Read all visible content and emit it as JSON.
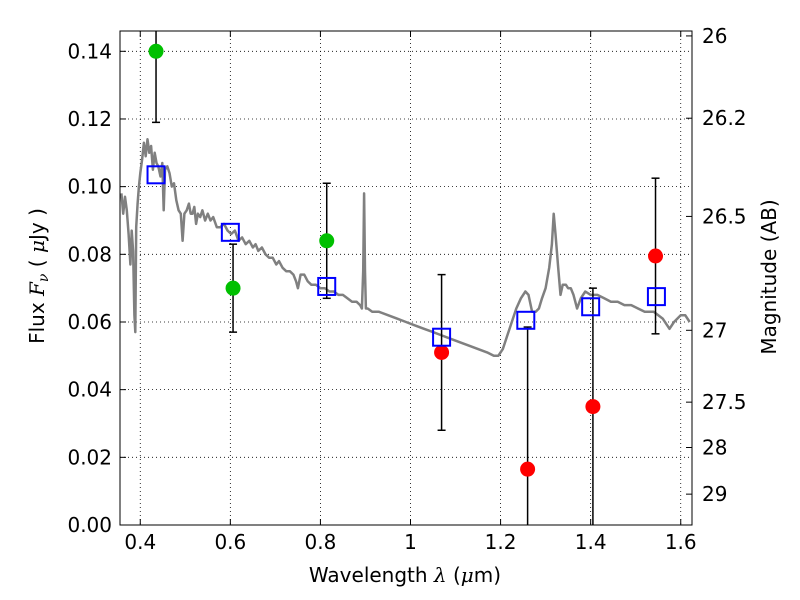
{
  "chart_data": {
    "type": "scatter",
    "xlabel": {
      "prefix": "Wavelength  ",
      "symbol": "λ",
      "units_open": " (",
      "units_sym": "μ",
      "units_rest": "m)"
    },
    "ylabel": {
      "prefix": "Flux  ",
      "symbol": "F",
      "sub": "ν",
      "units_open": "  ( ",
      "units_sym": "μ",
      "units_rest": "Jy )"
    },
    "y2label": "Magnitude (AB)",
    "xlim": [
      0.355,
      1.625
    ],
    "ylim": [
      0.0,
      0.146
    ],
    "grid": true,
    "x_ticks": [
      {
        "v": 0.4,
        "label": "0.4"
      },
      {
        "v": 0.6,
        "label": "0.6"
      },
      {
        "v": 0.8,
        "label": "0.8"
      },
      {
        "v": 1.0,
        "label": "1"
      },
      {
        "v": 1.2,
        "label": "1.2"
      },
      {
        "v": 1.4,
        "label": "1.4"
      },
      {
        "v": 1.6,
        "label": "1.6"
      }
    ],
    "y_ticks": [
      {
        "v": 0.0,
        "label": "0.00"
      },
      {
        "v": 0.02,
        "label": "0.02"
      },
      {
        "v": 0.04,
        "label": "0.04"
      },
      {
        "v": 0.06,
        "label": "0.06"
      },
      {
        "v": 0.08,
        "label": "0.08"
      },
      {
        "v": 0.1,
        "label": "0.10"
      },
      {
        "v": 0.12,
        "label": "0.12"
      },
      {
        "v": 0.14,
        "label": "0.14"
      }
    ],
    "y2_ticks": [
      {
        "mag": 26,
        "label": "26"
      },
      {
        "mag": 26.2,
        "label": "26.2"
      },
      {
        "mag": 26.5,
        "label": "26.5"
      },
      {
        "mag": 27,
        "label": "27"
      },
      {
        "mag": 27.5,
        "label": "27.5"
      },
      {
        "mag": 28,
        "label": "28"
      },
      {
        "mag": 29,
        "label": "29"
      }
    ],
    "model_sed": {
      "color": "#808080",
      "points": [
        [
          0.358,
          0.098
        ],
        [
          0.362,
          0.092
        ],
        [
          0.366,
          0.097
        ],
        [
          0.37,
          0.093
        ],
        [
          0.374,
          0.086
        ],
        [
          0.378,
          0.077
        ],
        [
          0.381,
          0.087
        ],
        [
          0.384,
          0.081
        ],
        [
          0.387,
          0.062
        ],
        [
          0.389,
          0.057
        ],
        [
          0.391,
          0.088
        ],
        [
          0.394,
          0.095
        ],
        [
          0.397,
          0.1
        ],
        [
          0.4,
          0.104
        ],
        [
          0.404,
          0.108
        ],
        [
          0.408,
          0.113
        ],
        [
          0.412,
          0.109
        ],
        [
          0.416,
          0.114
        ],
        [
          0.42,
          0.11
        ],
        [
          0.424,
          0.112
        ],
        [
          0.428,
          0.105
        ],
        [
          0.432,
          0.11
        ],
        [
          0.436,
          0.107
        ],
        [
          0.44,
          0.106
        ],
        [
          0.445,
          0.103
        ],
        [
          0.449,
          0.107
        ],
        [
          0.452,
          0.093
        ],
        [
          0.455,
          0.105
        ],
        [
          0.46,
          0.106
        ],
        [
          0.465,
          0.104
        ],
        [
          0.47,
          0.1
        ],
        [
          0.475,
          0.101
        ],
        [
          0.48,
          0.096
        ],
        [
          0.485,
          0.093
        ],
        [
          0.49,
          0.092
        ],
        [
          0.494,
          0.084
        ],
        [
          0.498,
          0.092
        ],
        [
          0.503,
          0.093
        ],
        [
          0.508,
          0.095
        ],
        [
          0.512,
          0.092
        ],
        [
          0.516,
          0.092
        ],
        [
          0.52,
          0.094
        ],
        [
          0.524,
          0.089
        ],
        [
          0.528,
          0.092
        ],
        [
          0.533,
          0.091
        ],
        [
          0.538,
          0.093
        ],
        [
          0.544,
          0.09
        ],
        [
          0.55,
          0.092
        ],
        [
          0.556,
          0.09
        ],
        [
          0.562,
          0.091
        ],
        [
          0.57,
          0.088
        ],
        [
          0.578,
          0.088
        ],
        [
          0.586,
          0.089
        ],
        [
          0.594,
          0.087
        ],
        [
          0.602,
          0.086
        ],
        [
          0.61,
          0.087
        ],
        [
          0.618,
          0.084
        ],
        [
          0.626,
          0.085
        ],
        [
          0.634,
          0.083
        ],
        [
          0.642,
          0.084
        ],
        [
          0.65,
          0.082
        ],
        [
          0.656,
          0.083
        ],
        [
          0.662,
          0.081
        ],
        [
          0.67,
          0.082
        ],
        [
          0.678,
          0.08
        ],
        [
          0.686,
          0.079
        ],
        [
          0.694,
          0.079
        ],
        [
          0.702,
          0.077
        ],
        [
          0.708,
          0.078
        ],
        [
          0.716,
          0.076
        ],
        [
          0.724,
          0.075
        ],
        [
          0.732,
          0.075
        ],
        [
          0.74,
          0.074
        ],
        [
          0.746,
          0.072
        ],
        [
          0.75,
          0.07
        ],
        [
          0.756,
          0.074
        ],
        [
          0.764,
          0.074
        ],
        [
          0.772,
          0.072
        ],
        [
          0.78,
          0.071
        ],
        [
          0.79,
          0.071
        ],
        [
          0.8,
          0.07
        ],
        [
          0.81,
          0.07
        ],
        [
          0.82,
          0.069
        ],
        [
          0.83,
          0.069
        ],
        [
          0.84,
          0.068
        ],
        [
          0.85,
          0.068
        ],
        [
          0.86,
          0.067
        ],
        [
          0.87,
          0.066
        ],
        [
          0.88,
          0.066
        ],
        [
          0.888,
          0.065
        ],
        [
          0.892,
          0.064
        ],
        [
          0.895,
          0.075
        ],
        [
          0.897,
          0.098
        ],
        [
          0.899,
          0.075
        ],
        [
          0.901,
          0.064
        ],
        [
          0.905,
          0.064
        ],
        [
          0.915,
          0.063
        ],
        [
          0.93,
          0.063
        ],
        [
          0.95,
          0.062
        ],
        [
          0.97,
          0.061
        ],
        [
          0.99,
          0.06
        ],
        [
          1.01,
          0.059
        ],
        [
          1.03,
          0.058
        ],
        [
          1.05,
          0.057
        ],
        [
          1.07,
          0.056
        ],
        [
          1.09,
          0.055
        ],
        [
          1.11,
          0.054
        ],
        [
          1.13,
          0.053
        ],
        [
          1.15,
          0.052
        ],
        [
          1.17,
          0.051
        ],
        [
          1.185,
          0.05
        ],
        [
          1.195,
          0.05
        ],
        [
          1.205,
          0.052
        ],
        [
          1.215,
          0.056
        ],
        [
          1.225,
          0.06
        ],
        [
          1.235,
          0.064
        ],
        [
          1.245,
          0.067
        ],
        [
          1.255,
          0.069
        ],
        [
          1.262,
          0.068
        ],
        [
          1.27,
          0.063
        ],
        [
          1.278,
          0.063
        ],
        [
          1.285,
          0.064
        ],
        [
          1.292,
          0.067
        ],
        [
          1.3,
          0.07
        ],
        [
          1.308,
          0.076
        ],
        [
          1.314,
          0.083
        ],
        [
          1.318,
          0.092
        ],
        [
          1.322,
          0.086
        ],
        [
          1.328,
          0.076
        ],
        [
          1.333,
          0.068
        ],
        [
          1.338,
          0.071
        ],
        [
          1.345,
          0.071
        ],
        [
          1.35,
          0.07
        ],
        [
          1.356,
          0.07
        ],
        [
          1.362,
          0.068
        ],
        [
          1.37,
          0.064
        ],
        [
          1.378,
          0.067
        ],
        [
          1.388,
          0.069
        ],
        [
          1.4,
          0.068
        ],
        [
          1.415,
          0.068
        ],
        [
          1.43,
          0.067
        ],
        [
          1.445,
          0.066
        ],
        [
          1.46,
          0.066
        ],
        [
          1.475,
          0.065
        ],
        [
          1.49,
          0.065
        ],
        [
          1.505,
          0.064
        ],
        [
          1.52,
          0.063
        ],
        [
          1.54,
          0.063
        ],
        [
          1.56,
          0.061
        ],
        [
          1.575,
          0.058
        ],
        [
          1.585,
          0.06
        ],
        [
          1.6,
          0.062
        ],
        [
          1.61,
          0.062
        ],
        [
          1.62,
          0.06
        ]
      ]
    },
    "series": [
      {
        "color": "#00c000",
        "points": [
          {
            "x": 0.435,
            "y": 0.14,
            "err_lo": 0.021,
            "err_hi": 0.01
          },
          {
            "x": 0.606,
            "y": 0.07,
            "err_lo": 0.013,
            "err_hi": 0.013
          },
          {
            "x": 0.814,
            "y": 0.084,
            "err_lo": 0.017,
            "err_hi": 0.017
          }
        ]
      },
      {
        "color": "#ff0000",
        "points": [
          {
            "x": 1.069,
            "y": 0.051,
            "err_lo": 0.023,
            "err_hi": 0.023
          },
          {
            "x": 1.26,
            "y": 0.0165,
            "err_lo": 0.017,
            "err_hi": 0.042
          },
          {
            "x": 1.405,
            "y": 0.035,
            "err_lo": 0.035,
            "err_hi": 0.035
          },
          {
            "x": 1.544,
            "y": 0.0795,
            "err_lo": 0.023,
            "err_hi": 0.023
          }
        ]
      },
      {
        "color": "#0000ff",
        "marker": "square-open",
        "points": [
          {
            "x": 0.435,
            "y": 0.1035
          },
          {
            "x": 0.6,
            "y": 0.0865
          },
          {
            "x": 0.814,
            "y": 0.0705
          },
          {
            "x": 1.069,
            "y": 0.0555
          },
          {
            "x": 1.256,
            "y": 0.0605
          },
          {
            "x": 1.4,
            "y": 0.0645
          },
          {
            "x": 1.546,
            "y": 0.0675
          }
        ]
      }
    ]
  }
}
